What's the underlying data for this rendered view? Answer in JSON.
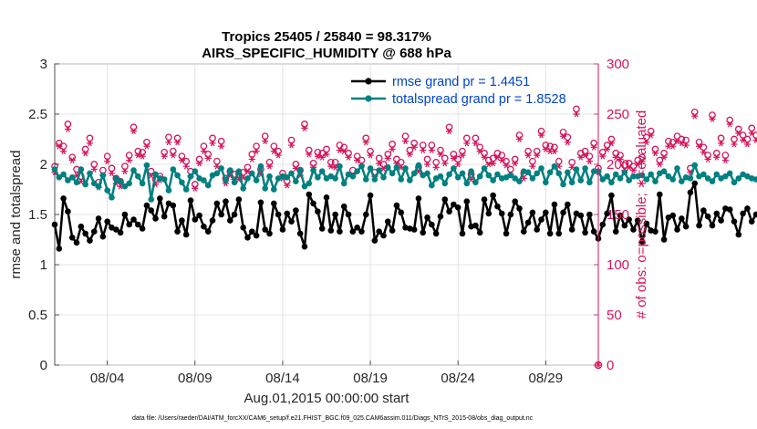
{
  "colors": {
    "rmse": "#000000",
    "spread": "#008080",
    "obs": "#d4145a",
    "legend_text": "#0044cc",
    "grid": "#dcdcdc"
  },
  "chart_data": {
    "type": "line",
    "title_line1": "Tropics 25405 / 25840 = 98.317%",
    "title_line2": "AIRS_SPECIFIC_HUMIDITY @ 688 hPa",
    "xlabel": "Aug.01,2015 00:00:00 start",
    "ylabel_left": "rmse and totalspread",
    "ylabel_right": "# of obs: o=possible; ∗=evaluated",
    "xlim": [
      1,
      32
    ],
    "ylim_left": [
      0,
      3
    ],
    "ylim_right": [
      0,
      300
    ],
    "x_ticks": [
      4,
      9,
      14,
      19,
      24,
      29
    ],
    "x_tick_labels": [
      "08/04",
      "08/09",
      "08/14",
      "08/19",
      "08/24",
      "08/29"
    ],
    "y_left_ticks": [
      "0",
      "0.5",
      "1",
      "1.5",
      "2",
      "2.5",
      "3"
    ],
    "y_right_ticks": [
      "0",
      "50",
      "100",
      "150",
      "200",
      "250",
      "300"
    ],
    "legend": {
      "rmse": "rmse grand pr = 1.4451",
      "spread": "totalspread grand pr = 1.8528"
    },
    "footnote": "data file: /Users/raeder/DAI/ATM_forcXX/CAM6_setup/f.e21.FHIST_BGC.f09_025.CAM6assim.011/Diags_NTrS_2015-08/obs_diag_output.nc",
    "series": [
      {
        "name": "rmse",
        "x_start": 1.0,
        "x_step": 0.25,
        "values": [
          1.4,
          1.16,
          1.66,
          1.53,
          1.27,
          1.22,
          1.38,
          1.31,
          1.24,
          1.33,
          1.46,
          1.28,
          1.43,
          1.37,
          1.35,
          1.32,
          1.5,
          1.4,
          1.45,
          1.4,
          1.36,
          1.59,
          1.54,
          1.46,
          1.66,
          1.48,
          1.61,
          1.59,
          1.33,
          1.44,
          1.3,
          1.64,
          1.45,
          1.49,
          1.38,
          1.33,
          1.44,
          1.61,
          1.5,
          1.63,
          1.44,
          1.5,
          1.65,
          1.37,
          1.27,
          1.33,
          1.29,
          1.62,
          1.35,
          1.31,
          1.61,
          1.5,
          1.35,
          1.51,
          1.43,
          1.54,
          1.31,
          1.18,
          1.7,
          1.61,
          1.53,
          1.36,
          1.67,
          1.34,
          1.5,
          1.33,
          1.58,
          1.5,
          1.33,
          1.37,
          1.33,
          1.5,
          1.69,
          1.24,
          1.33,
          1.29,
          1.43,
          1.34,
          1.59,
          1.52,
          1.37,
          1.36,
          1.35,
          1.66,
          1.32,
          1.47,
          1.4,
          1.31,
          1.48,
          1.65,
          1.53,
          1.6,
          1.57,
          1.31,
          1.63,
          1.38,
          1.39,
          1.32,
          1.65,
          1.51,
          1.69,
          1.58,
          1.51,
          1.31,
          1.5,
          1.63,
          1.56,
          1.33,
          1.42,
          1.52,
          1.35,
          1.45,
          1.52,
          1.31,
          1.6,
          1.31,
          1.52,
          1.6,
          1.35,
          1.51,
          1.49,
          1.32,
          1.5,
          1.33,
          1.26,
          1.4,
          1.51,
          1.69,
          1.33,
          1.49,
          1.39,
          1.45,
          1.35,
          1.44,
          1.23,
          1.41,
          1.34,
          1.33,
          1.7,
          1.25,
          1.47,
          1.49,
          1.35,
          1.46,
          1.38,
          1.72,
          1.81,
          1.39,
          1.54,
          1.48,
          1.39,
          1.51,
          1.44,
          1.56,
          1.55,
          1.43,
          1.3,
          1.51,
          1.56,
          1.43,
          1.5,
          1.56,
          1.55,
          1.37
        ]
      },
      {
        "name": "totalspread",
        "x_start": 1.0,
        "x_step": 0.25,
        "values": [
          1.95,
          1.87,
          1.9,
          1.84,
          1.87,
          1.82,
          1.95,
          1.8,
          1.91,
          1.81,
          1.78,
          1.89,
          1.74,
          1.67,
          1.86,
          1.83,
          1.78,
          1.81,
          1.94,
          1.88,
          1.81,
          1.99,
          1.65,
          1.9,
          1.86,
          1.85,
          1.74,
          1.95,
          1.89,
          1.82,
          1.75,
          1.88,
          1.93,
          1.86,
          1.84,
          1.79,
          1.89,
          1.91,
          1.96,
          1.84,
          1.94,
          1.82,
          1.93,
          1.76,
          1.86,
          1.91,
          1.84,
          1.98,
          1.76,
          1.88,
          1.75,
          1.86,
          1.88,
          1.87,
          1.91,
          1.83,
          1.94,
          1.78,
          1.81,
          1.94,
          1.87,
          1.93,
          1.86,
          1.88,
          1.86,
          1.98,
          1.81,
          1.9,
          1.88,
          1.93,
          1.98,
          1.85,
          1.96,
          1.85,
          1.94,
          1.87,
          1.97,
          1.91,
          1.97,
          1.85,
          1.96,
          1.84,
          1.91,
          1.99,
          1.89,
          1.91,
          1.79,
          1.86,
          1.88,
          1.81,
          1.9,
          1.96,
          1.87,
          1.91,
          1.81,
          1.93,
          1.82,
          1.88,
          1.96,
          1.89,
          1.84,
          1.9,
          1.86,
          1.87,
          1.89,
          1.86,
          1.83,
          1.93,
          1.92,
          1.86,
          1.91,
          1.96,
          1.82,
          1.92,
          1.98,
          1.91,
          1.8,
          1.92,
          1.82,
          1.95,
          1.84,
          1.96,
          1.82,
          1.93,
          1.93,
          1.85,
          1.88,
          1.82,
          1.9,
          1.86,
          1.92,
          1.84,
          1.88,
          1.88,
          1.89,
          1.85,
          1.9,
          1.83,
          1.91,
          1.93,
          1.88,
          1.85,
          1.96,
          1.83,
          1.87,
          1.86,
          1.99,
          1.88,
          1.9,
          1.86,
          1.83,
          1.9,
          1.86,
          1.88,
          1.91,
          1.82,
          1.86,
          1.9,
          1.88,
          1.86,
          1.85,
          1.82,
          1.84,
          1.86,
          1.85,
          1.84
        ]
      },
      {
        "name": "obs_possible",
        "axis": "right",
        "x_start": 1.0,
        "x_step": 0.25,
        "values": [
          198,
          221,
          218,
          240,
          207,
          195,
          188,
          215,
          226,
          200,
          182,
          194,
          208,
          196,
          186,
          183,
          198,
          209,
          237,
          213,
          212,
          222,
          193,
          185,
          188,
          212,
          227,
          213,
          226,
          208,
          203,
          193,
          180,
          205,
          218,
          210,
          226,
          203,
          223,
          186,
          193,
          190,
          190,
          192,
          197,
          210,
          218,
          195,
          228,
          202,
          218,
          213,
          191,
          183,
          224,
          200,
          194,
          240,
          214,
          201,
          212,
          211,
          215,
          202,
          202,
          219,
          217,
          211,
          194,
          208,
          204,
          226,
          213,
          192,
          206,
          200,
          210,
          220,
          205,
          202,
          228,
          214,
          221,
          197,
          219,
          205,
          219,
          202,
          214,
          206,
          237,
          210,
          205,
          213,
          226,
          190,
          226,
          217,
          211,
          204,
          206,
          211,
          209,
          203,
          195,
          205,
          229,
          191,
          213,
          203,
          213,
          233,
          219,
          218,
          217,
          203,
          232,
          227,
          202,
          255,
          211,
          213,
          208,
          221,
          196,
          212,
          219,
          225,
          211,
          209,
          199,
          201,
          198,
          204,
          207,
          227,
          233,
          215,
          204,
          211,
          223,
          222,
          228,
          225,
          224,
          196,
          252,
          222,
          217,
          209,
          249,
          211,
          226,
          209,
          244,
          225,
          235,
          229,
          225,
          236,
          229,
          237,
          236,
          223
        ]
      },
      {
        "name": "obs_evaluated",
        "axis": "right",
        "x_start": 1.0,
        "x_step": 0.25,
        "values": [
          192,
          218,
          213,
          235,
          204,
          189,
          183,
          211,
          221,
          195,
          177,
          189,
          203,
          191,
          181,
          178,
          193,
          204,
          233,
          209,
          208,
          218,
          189,
          180,
          184,
          208,
          222,
          209,
          222,
          204,
          198,
          188,
          176,
          201,
          213,
          206,
          221,
          198,
          218,
          181,
          189,
          185,
          185,
          187,
          193,
          205,
          213,
          190,
          223,
          198,
          213,
          209,
          186,
          179,
          219,
          196,
          189,
          236,
          210,
          197,
          208,
          207,
          210,
          198,
          197,
          214,
          213,
          207,
          189,
          204,
          199,
          222,
          209,
          188,
          201,
          196,
          206,
          215,
          201,
          197,
          223,
          210,
          217,
          193,
          214,
          200,
          214,
          197,
          210,
          201,
          233,
          206,
          200,
          209,
          221,
          185,
          221,
          213,
          207,
          200,
          201,
          207,
          204,
          199,
          190,
          201,
          225,
          186,
          209,
          198,
          209,
          229,
          215,
          213,
          213,
          198,
          228,
          222,
          197,
          250,
          207,
          209,
          203,
          217,
          192,
          208,
          215,
          221,
          207,
          205,
          194,
          197,
          194,
          200,
          203,
          222,
          229,
          211,
          200,
          207,
          218,
          218,
          223,
          221,
          219,
          192,
          248,
          218,
          212,
          205,
          245,
          207,
          221,
          204,
          240,
          220,
          231,
          224,
          220,
          231,
          224,
          233,
          232,
          219
        ]
      }
    ]
  }
}
